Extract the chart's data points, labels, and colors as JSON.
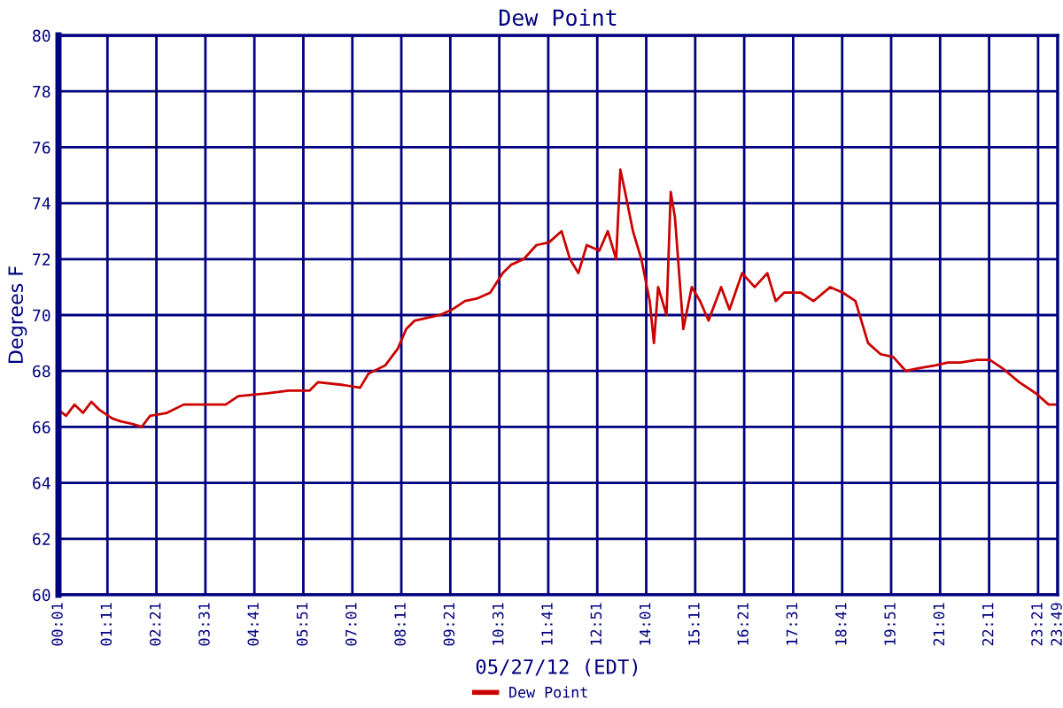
{
  "chart_data": {
    "type": "line",
    "title": "Dew Point",
    "xlabel": "05/27/12 (EDT)",
    "ylabel": "Degrees F",
    "xlim": [
      0.0167,
      23.8167
    ],
    "xticks": [
      {
        "value": 0.0167,
        "label": "00:01"
      },
      {
        "value": 1.1833,
        "label": "01:11"
      },
      {
        "value": 2.35,
        "label": "02:21"
      },
      {
        "value": 3.5167,
        "label": "03:31"
      },
      {
        "value": 4.6833,
        "label": "04:41"
      },
      {
        "value": 5.85,
        "label": "05:51"
      },
      {
        "value": 7.0167,
        "label": "07:01"
      },
      {
        "value": 8.1833,
        "label": "08:11"
      },
      {
        "value": 9.35,
        "label": "09:21"
      },
      {
        "value": 10.5167,
        "label": "10:31"
      },
      {
        "value": 11.6833,
        "label": "11:41"
      },
      {
        "value": 12.85,
        "label": "12:51"
      },
      {
        "value": 14.0167,
        "label": "14:01"
      },
      {
        "value": 15.1833,
        "label": "15:11"
      },
      {
        "value": 16.35,
        "label": "16:21"
      },
      {
        "value": 17.5167,
        "label": "17:31"
      },
      {
        "value": 18.6833,
        "label": "18:41"
      },
      {
        "value": 19.85,
        "label": "19:51"
      },
      {
        "value": 21.0167,
        "label": "21:01"
      },
      {
        "value": 22.1833,
        "label": "22:11"
      },
      {
        "value": 23.35,
        "label": "23:21"
      },
      {
        "value": 23.8167,
        "label": "23:49"
      }
    ],
    "ylim": [
      60,
      80
    ],
    "yticks": [
      60,
      62,
      64,
      66,
      68,
      70,
      72,
      74,
      76,
      78,
      80
    ],
    "grid": true,
    "legend": "bottom",
    "marker": "none",
    "line_style": "solid",
    "series": [
      {
        "name": "Dew Point",
        "color": "#cc0000",
        "x": [
          0.02,
          0.2,
          0.4,
          0.6,
          0.8,
          1.0,
          1.3,
          1.5,
          1.8,
          2.0,
          2.2,
          2.6,
          3.0,
          3.5,
          4.0,
          4.3,
          5.0,
          5.5,
          6.0,
          6.2,
          6.8,
          7.2,
          7.4,
          7.8,
          8.1,
          8.3,
          8.5,
          8.8,
          9.1,
          9.4,
          9.7,
          10.0,
          10.3,
          10.6,
          10.8,
          11.1,
          11.4,
          11.7,
          12.0,
          12.2,
          12.4,
          12.6,
          12.9,
          13.1,
          13.3,
          13.4,
          13.5,
          13.7,
          13.9,
          14.1,
          14.2,
          14.3,
          14.5,
          14.6,
          14.7,
          14.9,
          15.1,
          15.3,
          15.5,
          15.8,
          16.0,
          16.3,
          16.6,
          16.9,
          17.1,
          17.3,
          17.7,
          18.0,
          18.4,
          18.7,
          19.0,
          19.3,
          19.6,
          19.9,
          20.2,
          20.5,
          20.9,
          21.2,
          21.5,
          21.9,
          22.2,
          22.5,
          22.9,
          23.3,
          23.6,
          23.8
        ],
        "values": [
          66.6,
          66.4,
          66.8,
          66.5,
          66.9,
          66.6,
          66.3,
          66.2,
          66.1,
          66.0,
          66.4,
          66.5,
          66.8,
          66.8,
          66.8,
          67.1,
          67.2,
          67.3,
          67.3,
          67.6,
          67.5,
          67.4,
          67.9,
          68.2,
          68.8,
          69.5,
          69.8,
          69.9,
          70.0,
          70.2,
          70.5,
          70.6,
          70.8,
          71.5,
          71.8,
          72.0,
          72.5,
          72.6,
          73.0,
          72.0,
          71.5,
          72.5,
          72.3,
          73.0,
          72.0,
          75.2,
          74.5,
          73.0,
          72.0,
          70.5,
          69.0,
          71.0,
          70.0,
          74.4,
          73.5,
          69.5,
          71.0,
          70.5,
          69.8,
          71.0,
          70.2,
          71.5,
          71.0,
          71.5,
          70.5,
          70.8,
          70.8,
          70.5,
          71.0,
          70.8,
          70.5,
          69.0,
          68.6,
          68.5,
          68.0,
          68.1,
          68.2,
          68.3,
          68.3,
          68.4,
          68.4,
          68.1,
          67.6,
          67.2,
          66.8,
          66.8
        ]
      }
    ]
  }
}
